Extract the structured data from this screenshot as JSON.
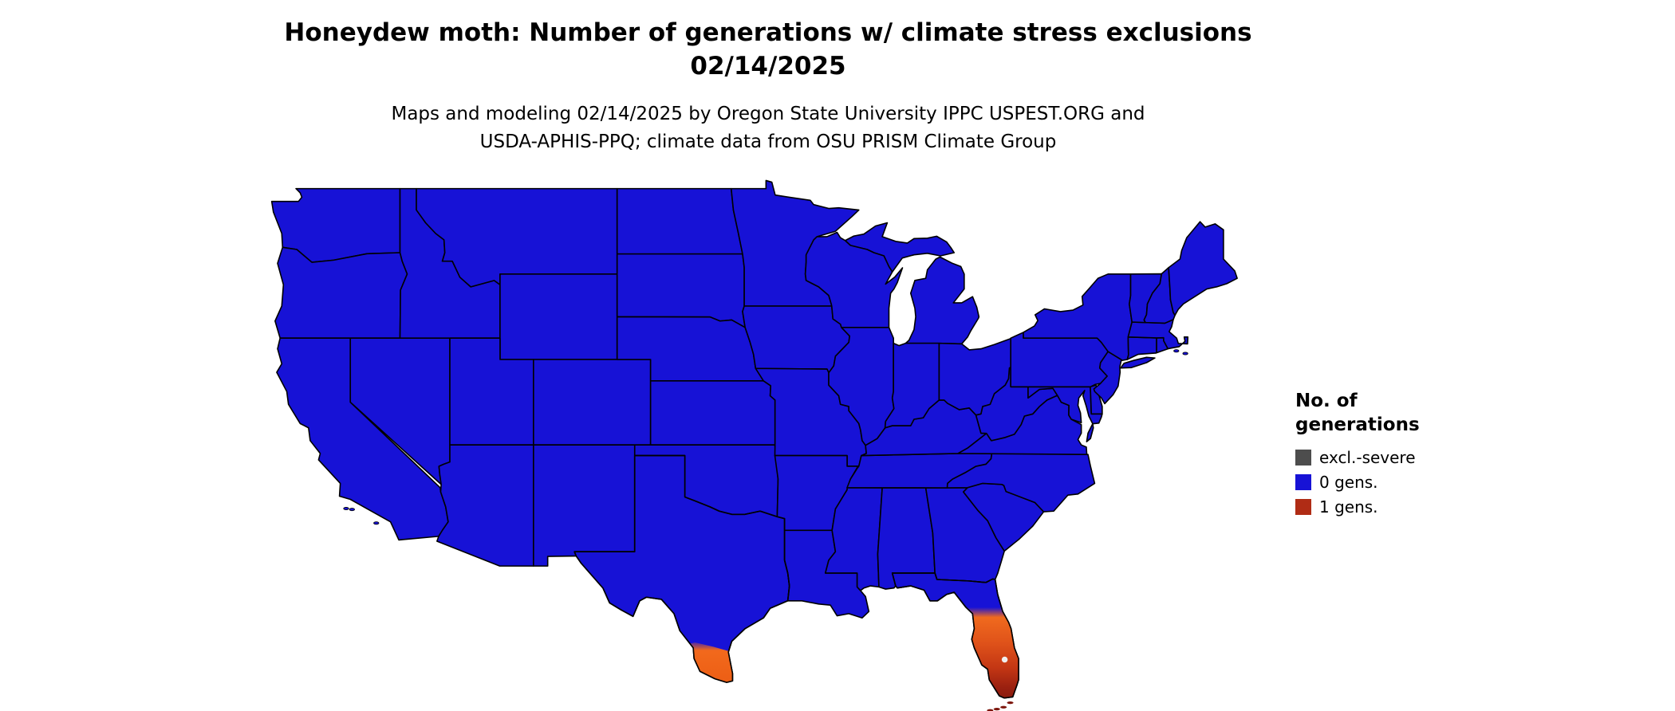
{
  "title": {
    "line1": "Honeydew moth: Number of generations w/ climate stress exclusions",
    "line2": "02/14/2025"
  },
  "subtitle": {
    "line1": "Maps and modeling 02/14/2025 by Oregon State University IPPC USPEST.ORG and",
    "line2": "USDA-APHIS-PPQ; climate data from OSU PRISM Climate Group"
  },
  "legend": {
    "title_line1": "No. of",
    "title_line2": "generations",
    "items": [
      {
        "label": "excl.-severe",
        "color": "#4d4d4d"
      },
      {
        "label": "0 gens.",
        "color": "#1712d6"
      },
      {
        "label": "1 gens.",
        "color": "#b02c15"
      }
    ]
  },
  "map": {
    "colors": {
      "land": "#1712d6",
      "border": "#000000",
      "water_dot": "#efefef",
      "fl_ramp": [
        "#1712d6",
        "#f06a1e",
        "#e0531a",
        "#c43714",
        "#9a2010",
        "#7c150c"
      ],
      "tx_ramp": [
        "#1712d6",
        "#f2691c",
        "#ea5a12"
      ],
      "keys_color": "#7c150c"
    },
    "regions": [
      {
        "name": "contiguous US (most states)",
        "class": "0 gens.",
        "color": "#1712d6"
      },
      {
        "name": "southern Texas tip (Rio Grande Valley)",
        "class": "1 gens.",
        "color": "#f2691c"
      },
      {
        "name": "southern Florida peninsula",
        "class": "1 gens.",
        "color": "#f06a1e to #7c150c"
      },
      {
        "name": "Florida Keys",
        "class": "1 gens.",
        "color": "#7c150c"
      }
    ]
  }
}
